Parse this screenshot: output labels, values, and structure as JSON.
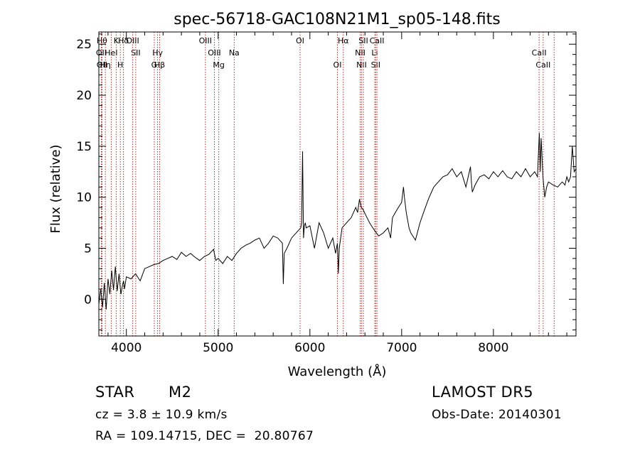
{
  "chart_data": {
    "type": "line",
    "title": "spec-56718-GAC108N21M1_sp05-148.fits",
    "xlabel": "Wavelength (Å)",
    "ylabel": "Flux (relative)",
    "xlim": [
      3700,
      8900
    ],
    "ylim": [
      -3.6,
      26.2
    ],
    "xticks": [
      4000,
      5000,
      6000,
      7000,
      8000
    ],
    "yticks": [
      0,
      5,
      10,
      15,
      20,
      25
    ],
    "grid": false,
    "series": [
      {
        "x": [
          3700,
          3720,
          3740,
          3760,
          3780,
          3800,
          3820,
          3840,
          3860,
          3880,
          3900,
          3920,
          3940,
          3960,
          3970,
          3980,
          4000,
          4050,
          4100,
          4150,
          4200,
          4250,
          4300,
          4350,
          4400,
          4450,
          4500,
          4550,
          4600,
          4650,
          4700,
          4750,
          4800,
          4850,
          4900,
          4950,
          4975,
          5000,
          5050,
          5100,
          5150,
          5200,
          5250,
          5300,
          5350,
          5400,
          5450,
          5500,
          5550,
          5600,
          5650,
          5700,
          5710,
          5720,
          5750,
          5800,
          5850,
          5900,
          5910,
          5920,
          5930,
          5940,
          5950,
          5960,
          6000,
          6050,
          6100,
          6150,
          6200,
          6250,
          6280,
          6300,
          6310,
          6320,
          6350,
          6400,
          6450,
          6500,
          6520,
          6540,
          6560,
          6580,
          6600,
          6650,
          6700,
          6750,
          6800,
          6850,
          6880,
          6900,
          6950,
          7000,
          7020,
          7030,
          7050,
          7080,
          7100,
          7150,
          7200,
          7250,
          7300,
          7350,
          7400,
          7450,
          7500,
          7550,
          7600,
          7650,
          7700,
          7750,
          7760,
          7770,
          7800,
          7850,
          7900,
          7950,
          8000,
          8050,
          8100,
          8150,
          8200,
          8250,
          8300,
          8350,
          8400,
          8450,
          8480,
          8500,
          8510,
          8520,
          8540,
          8560,
          8580,
          8600,
          8650,
          8700,
          8750,
          8780,
          8800,
          8820,
          8840,
          8860,
          8880,
          8900
        ],
        "y": [
          -0.5,
          1.0,
          -0.8,
          1.6,
          -1.0,
          2.0,
          0.5,
          2.8,
          0.9,
          3.2,
          0.8,
          2.5,
          0.5,
          1.5,
          1.8,
          1.0,
          2.2,
          2.0,
          2.5,
          1.8,
          3.0,
          3.2,
          3.4,
          3.5,
          3.8,
          4.0,
          4.2,
          3.9,
          4.6,
          4.2,
          4.5,
          4.1,
          3.8,
          4.2,
          4.4,
          4.9,
          3.8,
          4.0,
          3.5,
          4.2,
          3.8,
          4.5,
          5.0,
          5.3,
          5.5,
          5.8,
          6.0,
          5.0,
          5.5,
          6.2,
          6.0,
          5.5,
          1.5,
          4.5,
          5.0,
          6.0,
          6.5,
          7.0,
          7.5,
          14.5,
          6.0,
          7.2,
          7.5,
          7.0,
          7.2,
          5.0,
          7.5,
          6.5,
          5.0,
          6.0,
          4.5,
          5.5,
          2.5,
          5.0,
          7.0,
          7.5,
          8.0,
          9.0,
          8.5,
          9.8,
          9.0,
          8.8,
          8.4,
          7.5,
          6.8,
          6.2,
          6.5,
          7.0,
          6.0,
          8.0,
          8.8,
          9.5,
          11.0,
          10.0,
          8.5,
          7.0,
          6.5,
          5.8,
          7.5,
          8.8,
          10.0,
          11.0,
          11.5,
          12.0,
          12.2,
          12.8,
          12.0,
          12.5,
          11.0,
          13.0,
          11.5,
          10.5,
          11.2,
          12.0,
          12.2,
          11.8,
          12.5,
          12.0,
          12.6,
          12.0,
          11.8,
          12.5,
          12.0,
          12.8,
          12.0,
          12.5,
          12.0,
          16.3,
          12.5,
          15.8,
          12.0,
          10.0,
          11.0,
          11.5,
          11.2,
          11.0,
          11.5,
          11.2,
          12.0,
          11.5,
          12.0,
          15.0,
          12.5,
          12.8
        ]
      }
    ],
    "lines": [
      {
        "wavelength": 3734,
        "label": "Hθ",
        "row": 1
      },
      {
        "wavelength": 3727,
        "label": "OII",
        "row": 2
      },
      {
        "wavelength": 3734,
        "label": "OII",
        "row": 3
      },
      {
        "wavelength": 3771,
        "label": "Hη",
        "row": 3
      },
      {
        "wavelength": 3835,
        "label": "HeI",
        "row": 2
      },
      {
        "wavelength": 3889,
        "label": "K",
        "row": 1
      },
      {
        "wavelength": 3934,
        "label": "H",
        "row": 3
      },
      {
        "wavelength": 3968,
        "label": "Hδ",
        "row": 1
      },
      {
        "wavelength": 4102,
        "label": "SII",
        "row": 2
      },
      {
        "wavelength": 4069,
        "label": "OIII",
        "row": 1
      },
      {
        "wavelength": 4340,
        "label": "Hγ",
        "row": 2
      },
      {
        "wavelength": 4304,
        "label": "G",
        "row": 3
      },
      {
        "wavelength": 4363,
        "label": "Hβ",
        "row": 3
      },
      {
        "wavelength": 4861,
        "label": "OIII",
        "row": 1
      },
      {
        "wavelength": 4959,
        "label": "OIII",
        "row": 2
      },
      {
        "wavelength": 5007,
        "label": "Mg",
        "row": 3
      },
      {
        "wavelength": 5175,
        "label": "Na",
        "row": 2
      },
      {
        "wavelength": 5893,
        "label": "OI",
        "row": 1
      },
      {
        "wavelength": 6300,
        "label": "OI",
        "row": 3
      },
      {
        "wavelength": 6364,
        "label": "Hα",
        "row": 1
      },
      {
        "wavelength": 6548,
        "label": "NII",
        "row": 2
      },
      {
        "wavelength": 6563,
        "label": "NII",
        "row": 3
      },
      {
        "wavelength": 6583,
        "label": "SII",
        "row": 1
      },
      {
        "wavelength": 6707,
        "label": "Li",
        "row": 2
      },
      {
        "wavelength": 6717,
        "label": "SII",
        "row": 3
      },
      {
        "wavelength": 6731,
        "label": "CaII",
        "row": 1
      },
      {
        "wavelength": 8498,
        "label": "CaII",
        "row": 2
      },
      {
        "wavelength": 8542,
        "label": "CaII",
        "row": 3
      },
      {
        "wavelength": 8662,
        "label": "",
        "row": 0
      }
    ],
    "line_color": "#b03030"
  },
  "info": {
    "object_class": "STAR",
    "subclass": "M2",
    "survey": "LAMOST DR5",
    "redshift": "cz = 3.8 ± 10.9 km/s",
    "obs_date": "Obs-Date: 20140301",
    "coords": "RA = 109.14715, DEC =  20.80767"
  }
}
